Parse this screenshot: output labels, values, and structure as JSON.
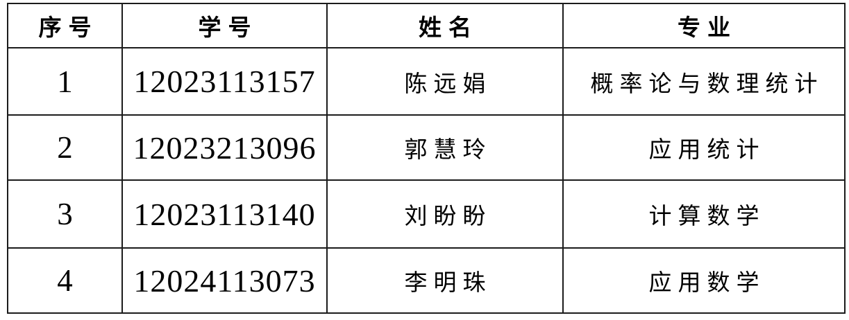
{
  "page": {
    "background": "#ffffff",
    "border_color": "#1b1b1b",
    "text_color": "#000000"
  },
  "table": {
    "columns": [
      {
        "key": "no",
        "label": "序号"
      },
      {
        "key": "student_id",
        "label": "学号"
      },
      {
        "key": "name",
        "label": "姓名"
      },
      {
        "key": "major",
        "label": "专业"
      }
    ],
    "rows": [
      {
        "no": "1",
        "student_id": "12023113157",
        "name": "陈远娟",
        "major": "概率论与数理统计"
      },
      {
        "no": "2",
        "student_id": "12023213096",
        "name": "郭慧玲",
        "major": "应用统计"
      },
      {
        "no": "3",
        "student_id": "12023113140",
        "name": "刘盼盼",
        "major": "计算数学"
      },
      {
        "no": "4",
        "student_id": "12024113073",
        "name": "李明珠",
        "major": "应用数学"
      }
    ]
  }
}
